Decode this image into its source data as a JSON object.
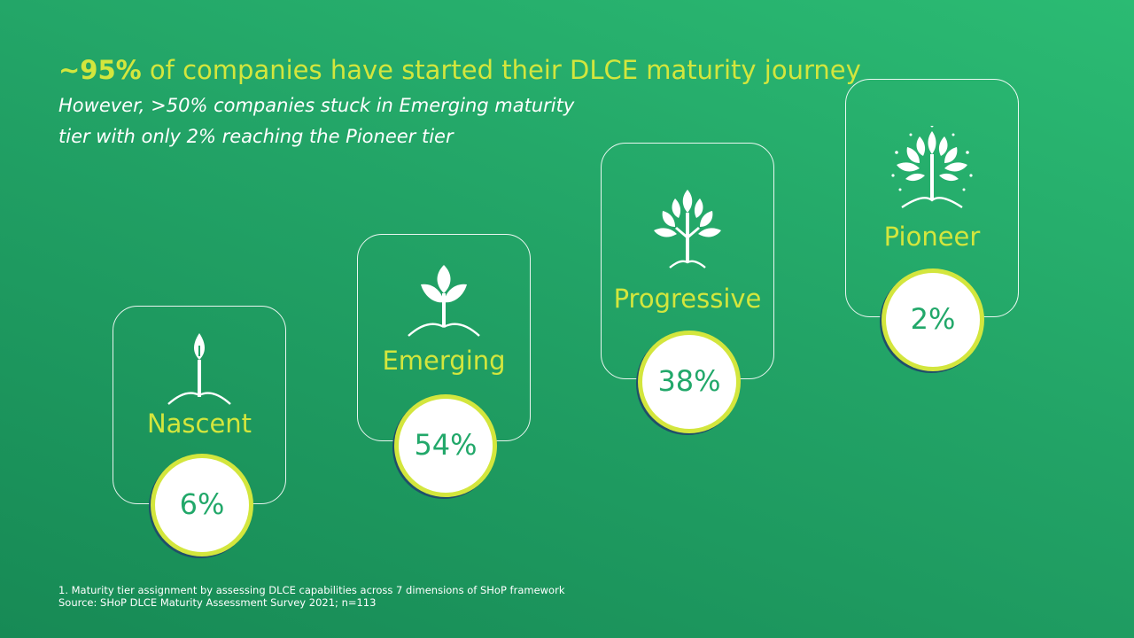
{
  "headline": {
    "highlight": "~95%",
    "rest": " of companies have started their DLCE maturity journey"
  },
  "subline": "However, >50% companies stuck in Emerging maturity tier with only 2% reaching the Pioneer tier",
  "tiers": [
    {
      "label": "Nascent",
      "percent": "6%",
      "icon": "sprout-icon"
    },
    {
      "label": "Emerging",
      "percent": "54%",
      "icon": "seedling-icon"
    },
    {
      "label": "Progressive",
      "percent": "38%",
      "icon": "young-tree-icon"
    },
    {
      "label": "Pioneer",
      "percent": "2%",
      "icon": "full-tree-icon"
    }
  ],
  "footnotes": {
    "note": "1. Maturity tier assignment by assessing DLCE capabilities across 7 dimensions of SHoP framework",
    "source": "Source: SHoP DLCE Maturity Assessment Survey 2021; n=113"
  },
  "colors": {
    "accent": "#d3e63d",
    "background": "#22a366",
    "ring_shadow": "#1f4f6a",
    "percent_text": "#22a86a"
  }
}
